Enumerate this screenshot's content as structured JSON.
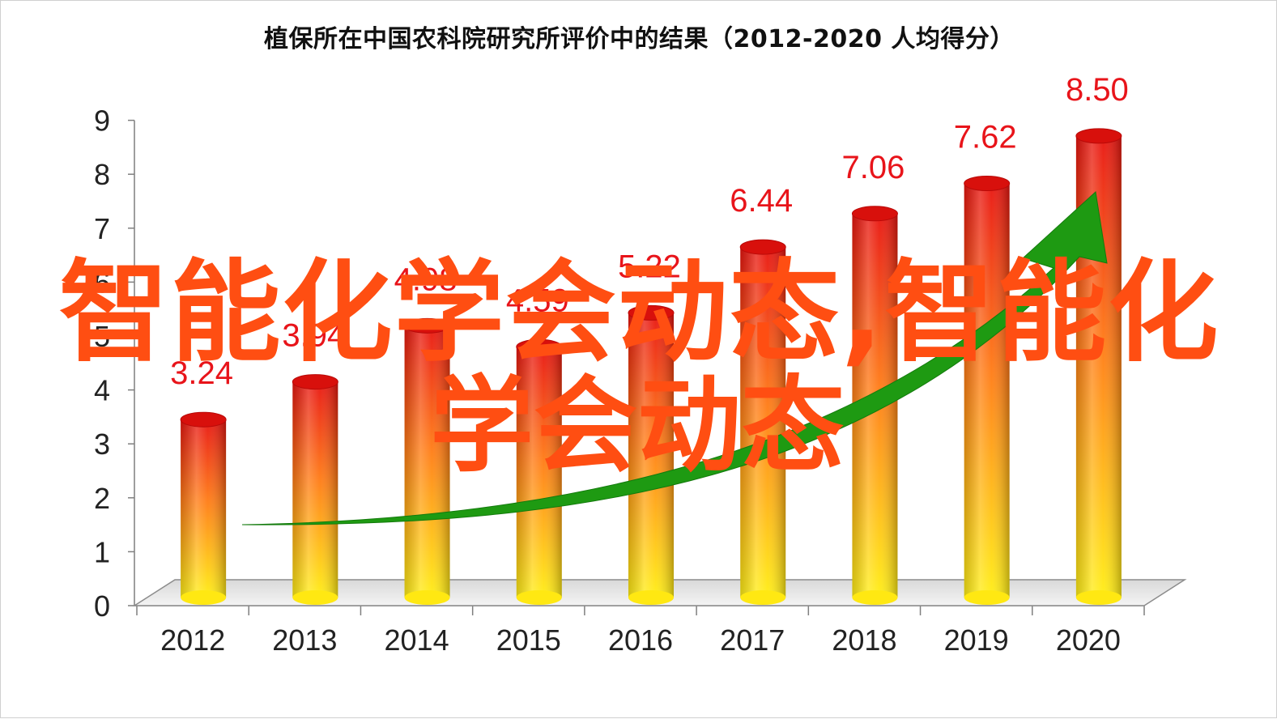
{
  "chart_data": {
    "type": "bar",
    "title": "植保所在中国农科院研究所评价中的结果（2012-2020  人均得分）",
    "categories": [
      "2012",
      "2013",
      "2014",
      "2015",
      "2016",
      "2017",
      "2018",
      "2019",
      "2020"
    ],
    "values": [
      3.24,
      3.94,
      4.98,
      4.59,
      5.22,
      6.44,
      7.06,
      7.62,
      8.5
    ],
    "data_labels": [
      "3.24",
      "3.94",
      "4.98",
      "4.59",
      "5.22",
      "6.44",
      "7.06",
      "7.62",
      "8.50"
    ],
    "y_ticks": [
      "0",
      "1",
      "2",
      "3",
      "4",
      "5",
      "6",
      "7",
      "8",
      "9"
    ],
    "ylim": [
      0,
      9
    ],
    "xlabel": "",
    "ylabel": "",
    "grid": false,
    "style": "3d-cylinder",
    "trend_arrow": true,
    "colors": {
      "bar_top": "#e8140f",
      "bar_mid": "#ff7a14",
      "bar_bottom": "#ffee14",
      "label": "#e8141a",
      "arrow": "#1e9a12",
      "floor": "#eeeeee"
    }
  },
  "overlay": {
    "line1": "智能化学会动态,智能化",
    "line2": "学会动态",
    "color": "#ff4e12"
  }
}
